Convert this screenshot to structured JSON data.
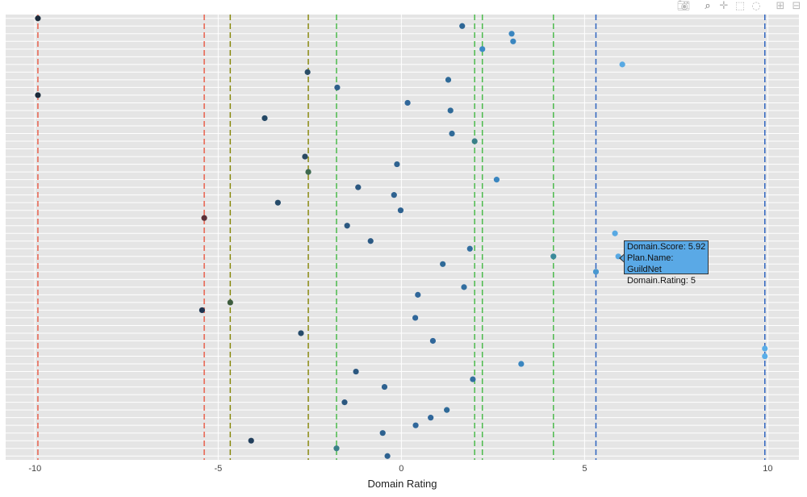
{
  "chart_data": {
    "type": "scatter",
    "xlabel": "Domain Rating",
    "ylabel": "",
    "xlim": [
      -10.8,
      10.85
    ],
    "xticks": [
      -10,
      -5,
      0,
      5,
      10
    ],
    "xtick_labels": [
      "-10",
      "-5",
      "0",
      "5",
      "10"
    ],
    "n_rows": 58,
    "grid": true,
    "legend": "none",
    "points": [
      {
        "x": -9.92,
        "row": 0,
        "color": "#1b2a3a"
      },
      {
        "x": 1.66,
        "row": 1,
        "color": "#2e6796"
      },
      {
        "x": 3.01,
        "row": 2,
        "color": "#3a86c0"
      },
      {
        "x": 3.05,
        "row": 3,
        "color": "#3a86c0"
      },
      {
        "x": 2.21,
        "row": 4,
        "color": "#3c8ac6"
      },
      {
        "x": 6.03,
        "row": 6,
        "color": "#58a9e3"
      },
      {
        "x": -2.56,
        "row": 7,
        "color": "#2b4e68"
      },
      {
        "x": 1.28,
        "row": 8,
        "color": "#2f6a98"
      },
      {
        "x": -1.75,
        "row": 9,
        "color": "#2f5f8a"
      },
      {
        "x": -9.92,
        "row": 10,
        "color": "#1b2a3a"
      },
      {
        "x": 0.17,
        "row": 11,
        "color": "#30679a"
      },
      {
        "x": 1.34,
        "row": 12,
        "color": "#2f6a98"
      },
      {
        "x": -3.73,
        "row": 13,
        "color": "#244865"
      },
      {
        "x": 1.38,
        "row": 15,
        "color": "#2f6a98"
      },
      {
        "x": 2.0,
        "row": 16,
        "color": "#3a7f88"
      },
      {
        "x": -2.63,
        "row": 18,
        "color": "#2a4a63"
      },
      {
        "x": -0.12,
        "row": 19,
        "color": "#2e6290"
      },
      {
        "x": -2.54,
        "row": 20,
        "color": "#3f6a50"
      },
      {
        "x": 2.6,
        "row": 21,
        "color": "#3a86c0"
      },
      {
        "x": -1.18,
        "row": 22,
        "color": "#2c5880"
      },
      {
        "x": -0.2,
        "row": 23,
        "color": "#2e6290"
      },
      {
        "x": -3.37,
        "row": 24,
        "color": "#264b6a"
      },
      {
        "x": -0.02,
        "row": 25,
        "color": "#2e6290"
      },
      {
        "x": -5.38,
        "row": 26,
        "color": "#5a3038"
      },
      {
        "x": -1.48,
        "row": 27,
        "color": "#2c5880"
      },
      {
        "x": 5.83,
        "row": 28,
        "color": "#58a9e3"
      },
      {
        "x": -0.84,
        "row": 29,
        "color": "#2c5a84"
      },
      {
        "x": 1.87,
        "row": 30,
        "color": "#336fa0"
      },
      {
        "x": 4.15,
        "row": 31,
        "color": "#3a8a9a"
      },
      {
        "x": 5.92,
        "row": 31,
        "color": "#58a9e3"
      },
      {
        "x": 1.13,
        "row": 32,
        "color": "#2f6a98"
      },
      {
        "x": 5.31,
        "row": 33,
        "color": "#4a98d0"
      },
      {
        "x": 1.71,
        "row": 35,
        "color": "#336fa0"
      },
      {
        "x": 0.45,
        "row": 36,
        "color": "#30679a"
      },
      {
        "x": -4.67,
        "row": 37,
        "color": "#3d5c3e"
      },
      {
        "x": -5.44,
        "row": 38,
        "color": "#1e3550"
      },
      {
        "x": 0.38,
        "row": 39,
        "color": "#30679a"
      },
      {
        "x": -2.74,
        "row": 41,
        "color": "#264b6a"
      },
      {
        "x": 0.86,
        "row": 42,
        "color": "#30679a"
      },
      {
        "x": 9.92,
        "row": 43,
        "color": "#5aaee8"
      },
      {
        "x": 9.92,
        "row": 44,
        "color": "#5aaee8"
      },
      {
        "x": 3.27,
        "row": 45,
        "color": "#3a86c0"
      },
      {
        "x": -1.24,
        "row": 46,
        "color": "#2c5880"
      },
      {
        "x": 1.95,
        "row": 47,
        "color": "#336fa0"
      },
      {
        "x": -0.46,
        "row": 48,
        "color": "#2e6290"
      },
      {
        "x": -1.55,
        "row": 50,
        "color": "#2c5880"
      },
      {
        "x": 1.24,
        "row": 51,
        "color": "#2f6a98"
      },
      {
        "x": 0.8,
        "row": 52,
        "color": "#30679a"
      },
      {
        "x": 0.39,
        "row": 53,
        "color": "#30679a"
      },
      {
        "x": -0.51,
        "row": 54,
        "color": "#2e6290"
      },
      {
        "x": -4.1,
        "row": 55,
        "color": "#223f5c"
      },
      {
        "x": -1.77,
        "row": 56,
        "color": "#3a7f88"
      },
      {
        "x": -0.38,
        "row": 57,
        "color": "#2e6290"
      }
    ],
    "reference_lines": [
      {
        "x": -9.92,
        "color": "#e8604c"
      },
      {
        "x": -5.38,
        "color": "#e8604c"
      },
      {
        "x": -4.67,
        "color": "#8a8a10"
      },
      {
        "x": -2.54,
        "color": "#8a8a10"
      },
      {
        "x": -1.77,
        "color": "#4cbb4c"
      },
      {
        "x": 2.0,
        "color": "#4cbb4c"
      },
      {
        "x": 2.21,
        "color": "#4cbb4c"
      },
      {
        "x": 4.15,
        "color": "#4cbb4c"
      },
      {
        "x": 5.31,
        "color": "#2e64c0"
      },
      {
        "x": 9.92,
        "color": "#2e64c0"
      }
    ]
  },
  "tooltip": {
    "line1": "Domain.Score: 5.92",
    "line2": "Plan.Name: GuildNet",
    "line3": "Domain.Rating: 5"
  },
  "modebar": [
    "camera-icon",
    "zoom-icon",
    "pan-icon",
    "box-select-icon",
    "lasso-icon",
    "zoom-in-icon",
    "zoom-out-icon"
  ]
}
